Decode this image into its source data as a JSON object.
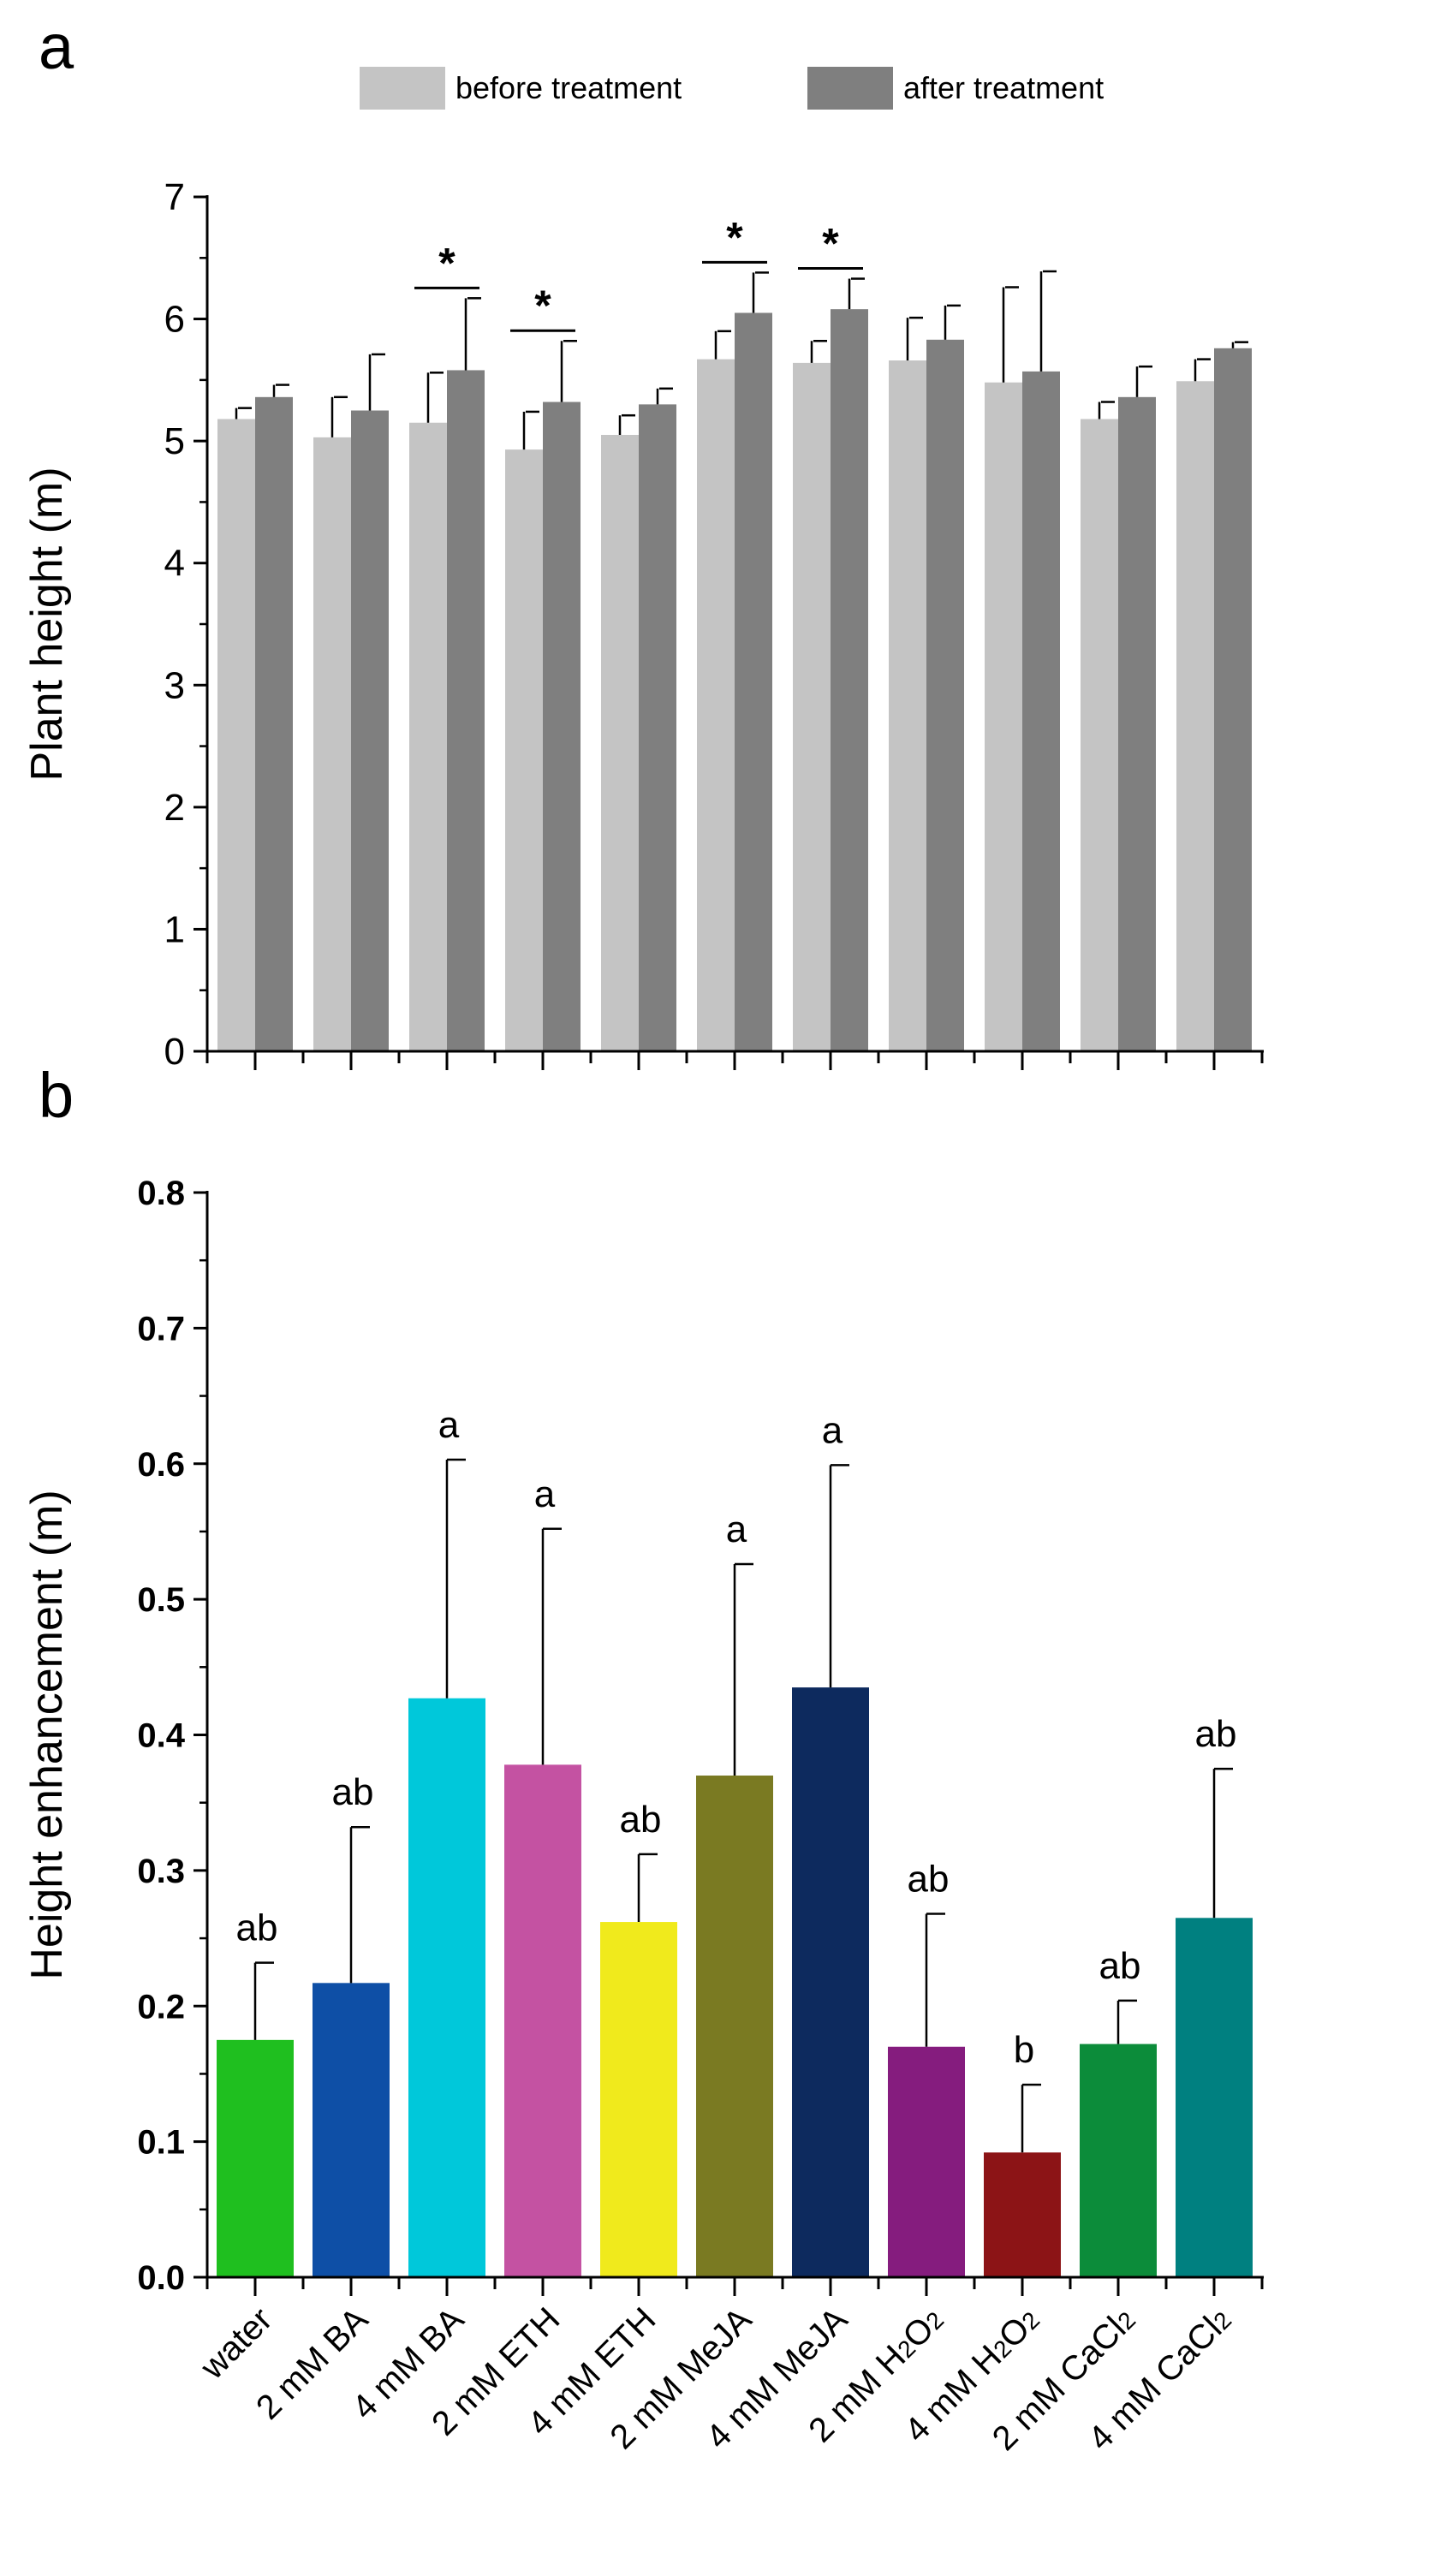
{
  "chart_data": [
    {
      "panel": "a",
      "type": "bar",
      "title": "",
      "xlabel": "",
      "ylabel": "Plant height (m)",
      "ylim": [
        0,
        7
      ],
      "yticks": [
        "0",
        "1",
        "2",
        "3",
        "4",
        "5",
        "6",
        "7"
      ],
      "legend": [
        "before treatment",
        "after treatment"
      ],
      "legend_position": "top",
      "categories": [
        "water",
        "2 mM BA",
        "4 mM BA",
        "2 mM ETH",
        "4 mM ETH",
        "2 mM MeJA",
        "4 mM MeJA",
        "2 mM H2O2",
        "4 mM H2O2",
        "2 mM CaCl2",
        "4 mM CaCl2"
      ],
      "series": [
        {
          "name": "before treatment",
          "color": "#c4c4c4",
          "values": [
            5.18,
            5.03,
            5.15,
            4.93,
            5.05,
            5.67,
            5.64,
            5.66,
            5.48,
            5.18,
            5.49
          ],
          "errors": [
            0.09,
            0.33,
            0.41,
            0.31,
            0.16,
            0.23,
            0.18,
            0.35,
            0.78,
            0.14,
            0.18
          ]
        },
        {
          "name": "after treatment",
          "color": "#7f7f7f",
          "values": [
            5.36,
            5.25,
            5.58,
            5.32,
            5.3,
            6.05,
            6.08,
            5.83,
            5.57,
            5.36,
            5.76
          ],
          "errors": [
            0.1,
            0.46,
            0.59,
            0.5,
            0.13,
            0.33,
            0.25,
            0.28,
            0.82,
            0.25,
            0.05
          ]
        }
      ],
      "significance_marks": [
        {
          "category_index": 2,
          "label": "*"
        },
        {
          "category_index": 3,
          "label": "*"
        },
        {
          "category_index": 5,
          "label": "*"
        },
        {
          "category_index": 6,
          "label": "*"
        }
      ]
    },
    {
      "panel": "b",
      "type": "bar",
      "title": "",
      "xlabel": "",
      "ylabel": "Height enhancement (m)",
      "ylim": [
        0,
        0.8
      ],
      "yticks": [
        "0.0",
        "0.1",
        "0.2",
        "0.3",
        "0.4",
        "0.5",
        "0.6",
        "0.7",
        "0.8"
      ],
      "categories": [
        "water",
        "2 mM BA",
        "4 mM BA",
        "2 mM ETH",
        "4 mM ETH",
        "2 mM MeJA",
        "4 mM MeJA",
        "2 mM H2O2",
        "4 mM H2O2",
        "2 mM CaCl2",
        "4 mM CaCl2"
      ],
      "values": [
        0.175,
        0.217,
        0.427,
        0.378,
        0.262,
        0.37,
        0.435,
        0.17,
        0.092,
        0.172,
        0.265
      ],
      "errors": [
        0.057,
        0.115,
        0.176,
        0.174,
        0.05,
        0.156,
        0.164,
        0.098,
        0.05,
        0.032,
        0.11
      ],
      "significance_letters": [
        "ab",
        "ab",
        "a",
        "a",
        "ab",
        "a",
        "a",
        "ab",
        "b",
        "ab",
        "ab"
      ],
      "colors": [
        "#1fbf1f",
        "#0e4fa6",
        "#00c8da",
        "#c452a2",
        "#f0ea1c",
        "#7a7a22",
        "#0d2a5e",
        "#851c7e",
        "#8c1416",
        "#0c8c3a",
        "#008080"
      ]
    }
  ],
  "panel_labels": {
    "a": "a",
    "b": "b"
  }
}
